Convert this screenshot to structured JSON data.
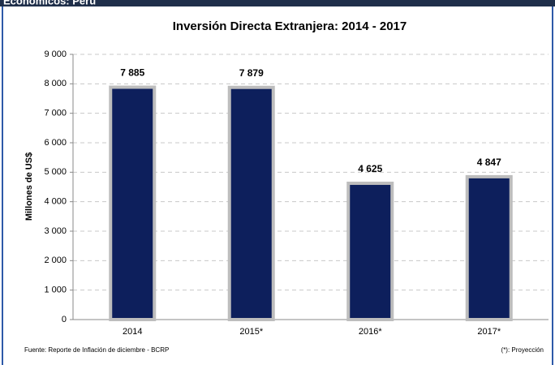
{
  "header": "Económicos: Perú",
  "chart_data": {
    "type": "bar",
    "title": "Inversión Directa Extranjera: 2014 - 2017",
    "y_label": "Millones de US$",
    "categories": [
      "2014",
      "2015*",
      "2016*",
      "2017*"
    ],
    "values": [
      7885,
      7879,
      4625,
      4847
    ],
    "value_labels": [
      "7 885",
      "7 879",
      "4 625",
      "4 847"
    ],
    "color": "#0d1f5c",
    "edge_color": "#bdbdbd",
    "ylim": [
      0,
      9000
    ],
    "yticks": [
      0,
      {
        "value": 1000,
        "label": "1 000"
      },
      {
        "value": 2000,
        "label": "2 000"
      },
      {
        "value": 3000,
        "label": "3 000"
      },
      {
        "value": 4000,
        "label": "4 000"
      },
      {
        "value": 5000,
        "label": "5 000"
      },
      {
        "value": 6000,
        "label": "6 000"
      },
      {
        "value": 7000,
        "label": "7 000"
      },
      {
        "value": 8000,
        "label": "8 000"
      },
      {
        "value": 9000,
        "label": "9 000"
      }
    ],
    "grid": true,
    "source": "Fuente: Reporte de Inflación de diciembre - BCRP",
    "note": "(*): Proyección"
  }
}
